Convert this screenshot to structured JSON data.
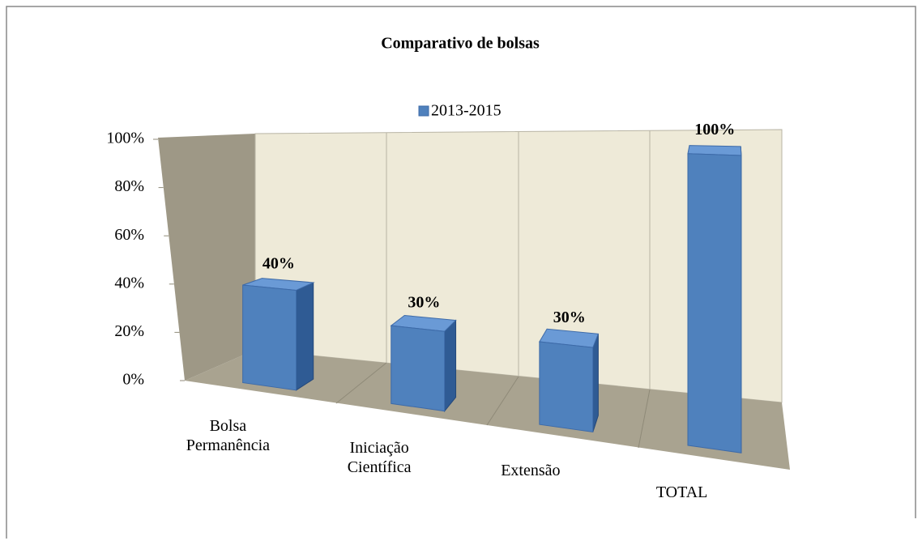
{
  "chart_data": {
    "type": "bar3d",
    "title": "Comparativo de bolsas",
    "categories": [
      "Bolsa Permanência",
      "Iniciação Científica",
      "Extensão",
      "TOTAL"
    ],
    "series": [
      {
        "name": "2013-2015",
        "color": "#4f81bd",
        "values": [
          40,
          30,
          30,
          100
        ],
        "value_labels": [
          "40%",
          "30%",
          "30%",
          "100%"
        ]
      }
    ],
    "ylim": [
      0,
      100
    ],
    "yticks": [
      {
        "value": 0,
        "label": "0%"
      },
      {
        "value": 20,
        "label": "20%"
      },
      {
        "value": 40,
        "label": "40%"
      },
      {
        "value": 60,
        "label": "60%"
      },
      {
        "value": 80,
        "label": "80%"
      },
      {
        "value": 100,
        "label": "100%"
      }
    ],
    "legend": "top"
  }
}
